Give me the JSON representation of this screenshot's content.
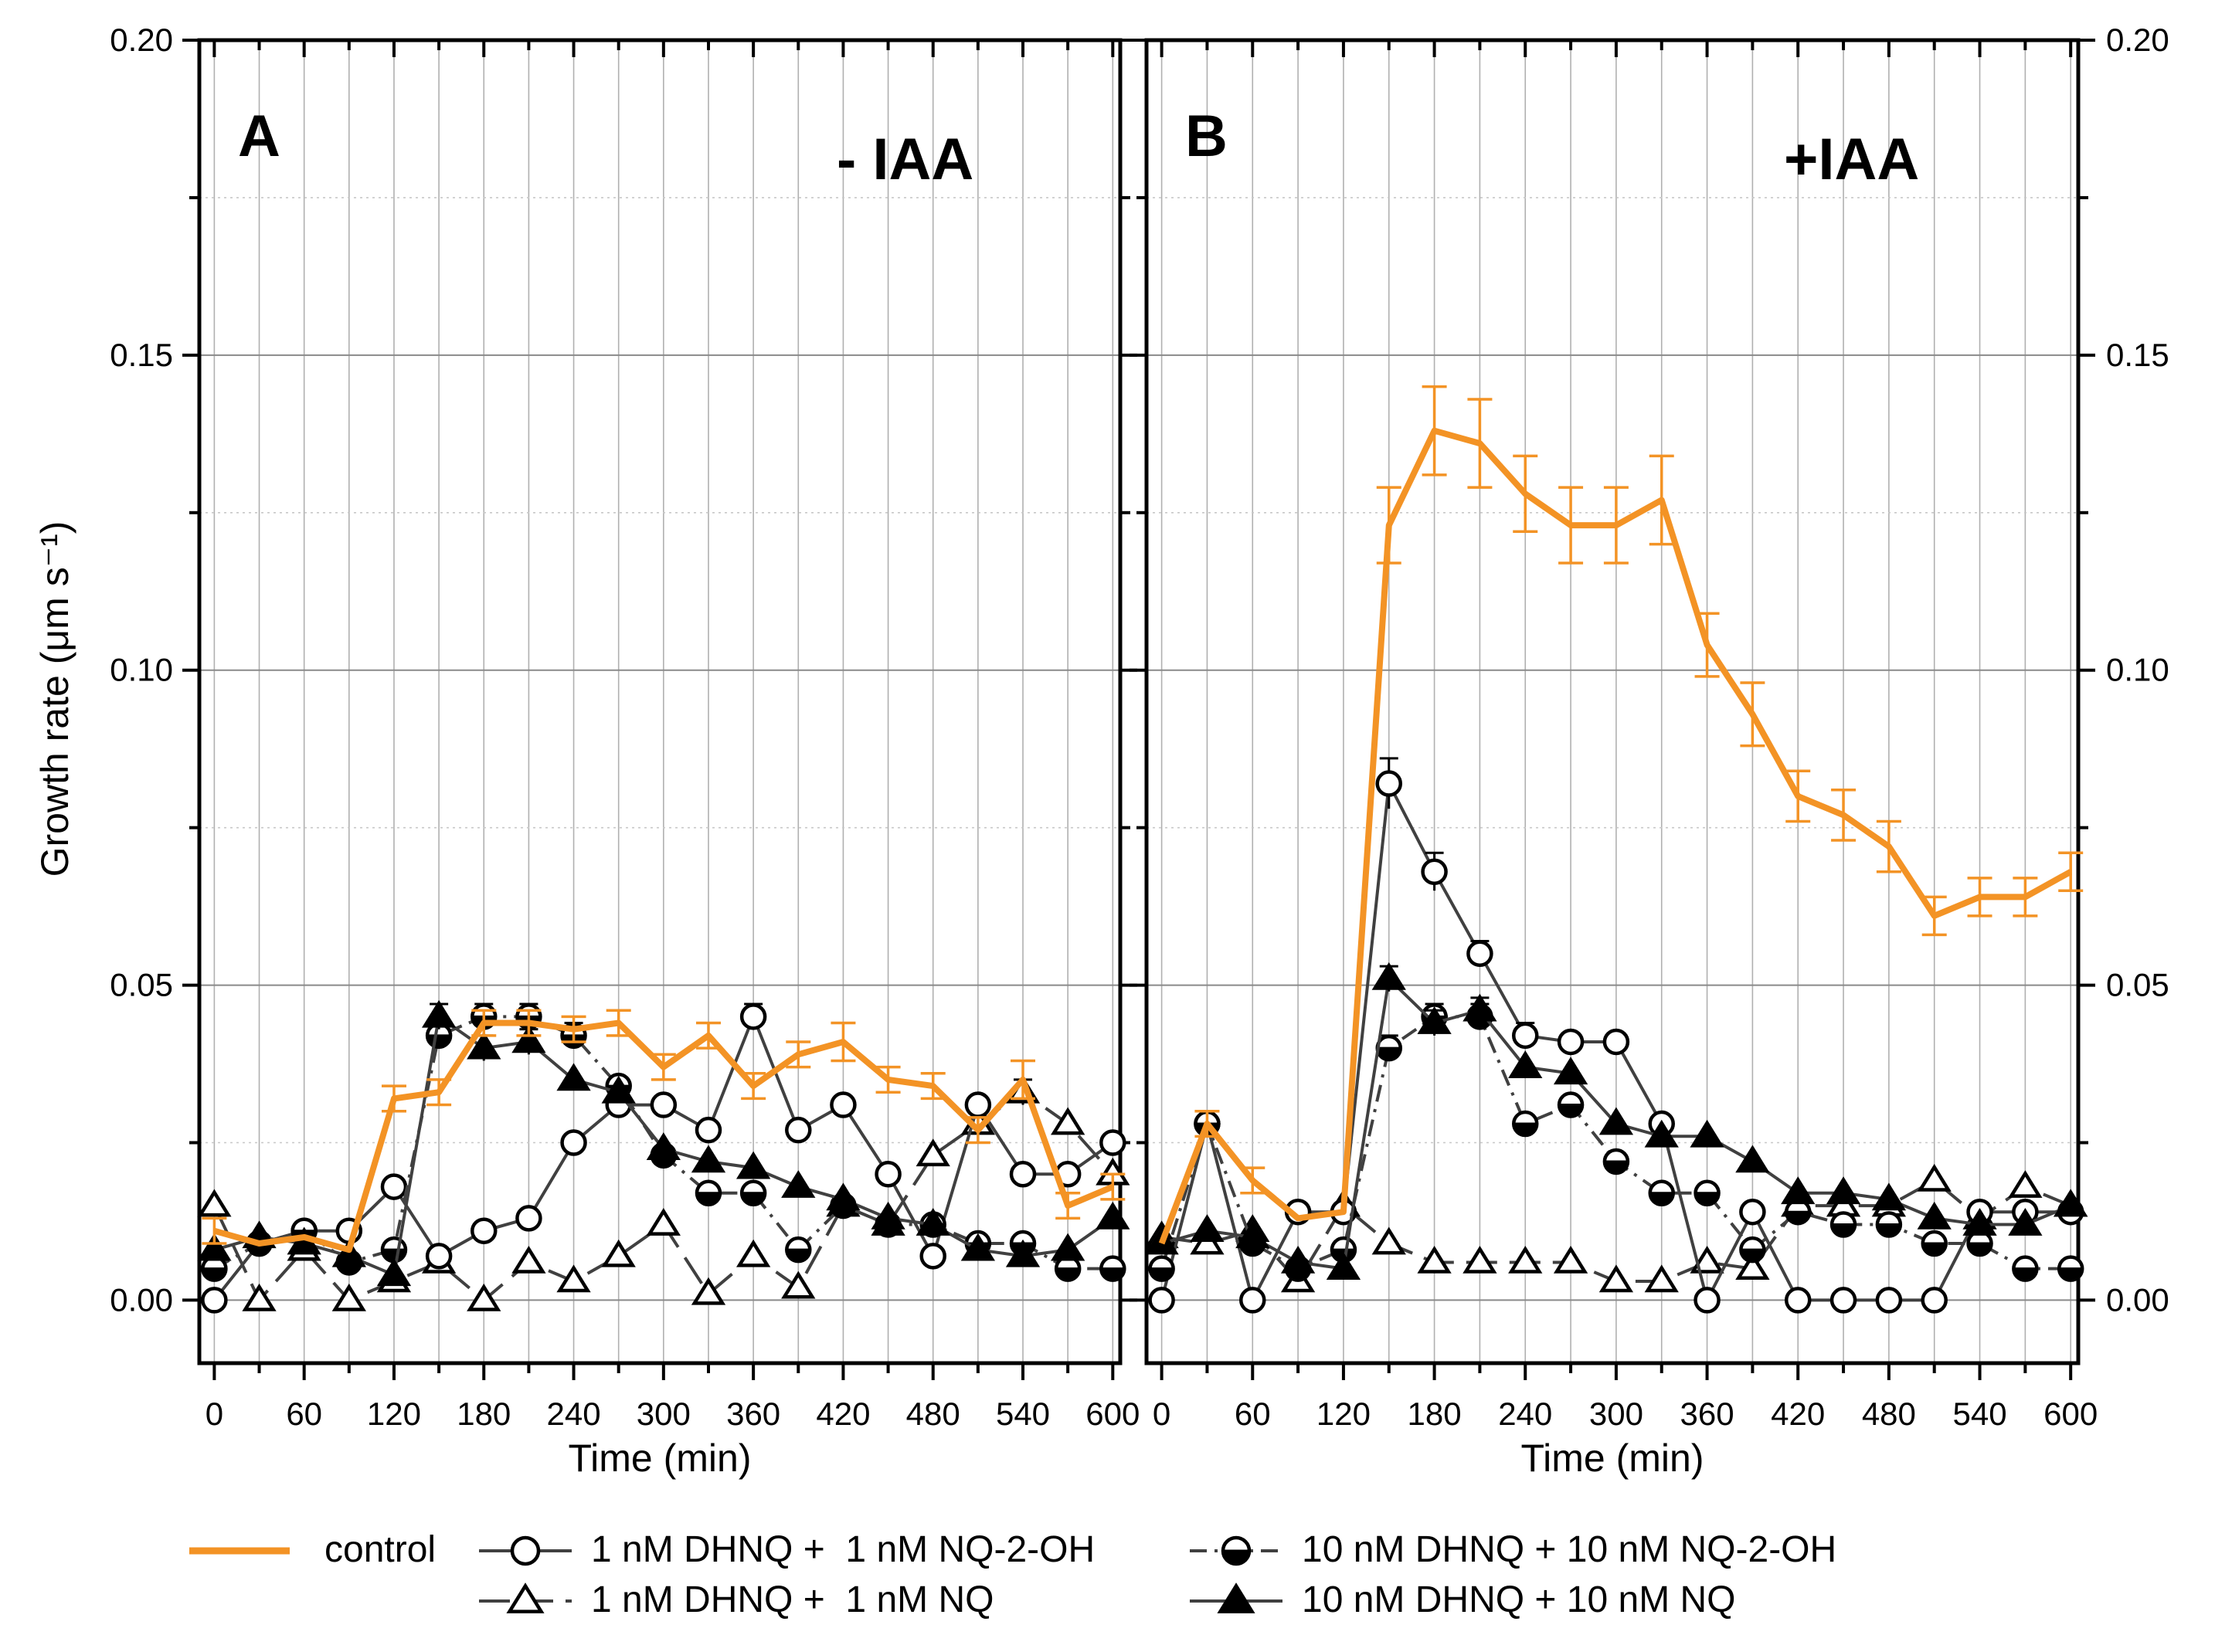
{
  "colors": {
    "control": "#f39325",
    "marker_series": "#404040",
    "grid": "#b0b0b0",
    "axis": "#000000"
  },
  "y_axis_label": "Growth rate (μm s⁻¹)",
  "legend": {
    "items": [
      {
        "label": "control",
        "style": "control"
      },
      {
        "label": "1 nM DHNQ +  1 nM NQ-2-OH",
        "style": "open-circle"
      },
      {
        "label": "10 nM DHNQ + 10 nM NQ-2-OH",
        "style": "half-circle"
      },
      {
        "label": "1 nM DHNQ +  1 nM NQ",
        "style": "open-triangle"
      },
      {
        "label": "10 nM DHNQ + 10 nM NQ",
        "style": "filled-triangle"
      }
    ]
  },
  "chart_data": [
    {
      "panel_label": "A",
      "condition_label": "- IAA",
      "type": "line",
      "xlabel": "Time (min)",
      "ylabel": "Growth rate (μm s⁻¹)",
      "xlim": [
        -10,
        605
      ],
      "ylim": [
        -0.01,
        0.2
      ],
      "xticks": [
        0,
        60,
        120,
        180,
        240,
        300,
        360,
        420,
        480,
        540,
        600
      ],
      "yticks": [
        0.0,
        0.05,
        0.1,
        0.15,
        0.2
      ],
      "ytick_labels": [
        "0.00",
        "0.05",
        "0.10",
        "0.15",
        "0.20"
      ],
      "grid": true,
      "x": [
        0,
        30,
        60,
        90,
        120,
        150,
        180,
        210,
        240,
        270,
        300,
        330,
        360,
        390,
        420,
        450,
        480,
        510,
        540,
        570,
        600
      ],
      "series": [
        {
          "name": "control",
          "style": "control",
          "values": [
            0.011,
            0.009,
            0.01,
            0.008,
            0.032,
            0.033,
            0.044,
            0.044,
            0.043,
            0.044,
            0.037,
            0.042,
            0.034,
            0.039,
            0.041,
            0.035,
            0.034,
            0.027,
            0.035,
            0.015,
            0.018
          ],
          "errors": [
            0.002,
            0.001,
            0.001,
            0.001,
            0.002,
            0.002,
            0.002,
            0.002,
            0.002,
            0.002,
            0.002,
            0.002,
            0.002,
            0.002,
            0.003,
            0.002,
            0.002,
            0.002,
            0.003,
            0.002,
            0.002
          ]
        },
        {
          "name": "1 nM DHNQ +  1 nM NQ-2-OH",
          "style": "open-circle",
          "values": [
            0.0,
            0.009,
            0.011,
            0.011,
            0.018,
            0.007,
            0.011,
            0.013,
            0.025,
            0.031,
            0.031,
            0.027,
            0.045,
            0.027,
            0.031,
            0.02,
            0.007,
            0.031,
            0.02,
            0.02,
            0.025
          ],
          "errors": [
            0.001,
            0.001,
            0.001,
            0.001,
            0.001,
            0.001,
            0.001,
            0.001,
            0.001,
            0.001,
            0.001,
            0.001,
            0.002,
            0.001,
            0.001,
            0.001,
            0.001,
            0.001,
            0.001,
            0.001,
            0.001
          ]
        },
        {
          "name": "10 nM DHNQ + 10 nM NQ-2-OH",
          "style": "half-circle",
          "values": [
            0.005,
            0.009,
            0.011,
            0.006,
            0.008,
            0.042,
            0.045,
            0.045,
            0.042,
            0.034,
            0.023,
            0.017,
            0.017,
            0.008,
            0.015,
            0.012,
            0.012,
            0.009,
            0.009,
            0.005,
            0.005
          ],
          "errors": [
            0.001,
            0.001,
            0.001,
            0.001,
            0.001,
            0.002,
            0.002,
            0.002,
            0.002,
            0.001,
            0.001,
            0.001,
            0.001,
            0.001,
            0.001,
            0.001,
            0.001,
            0.001,
            0.001,
            0.001,
            0.001
          ]
        },
        {
          "name": "1 nM DHNQ +  1 nM NQ",
          "style": "open-triangle",
          "values": [
            0.015,
            0.0,
            0.008,
            0.0,
            0.003,
            0.006,
            0.0,
            0.006,
            0.003,
            0.007,
            0.012,
            0.001,
            0.007,
            0.002,
            0.015,
            0.012,
            0.023,
            0.028,
            0.033,
            0.028,
            0.02
          ],
          "errors": [
            0.001,
            0.001,
            0.001,
            0.001,
            0.001,
            0.001,
            0.001,
            0.001,
            0.001,
            0.001,
            0.001,
            0.001,
            0.001,
            0.001,
            0.001,
            0.001,
            0.001,
            0.001,
            0.002,
            0.001,
            0.001
          ]
        },
        {
          "name": "10 nM DHNQ + 10 nM NQ",
          "style": "filled-triangle",
          "values": [
            0.008,
            0.01,
            0.009,
            0.007,
            0.004,
            0.045,
            0.04,
            0.041,
            0.035,
            0.033,
            0.024,
            0.022,
            0.021,
            0.018,
            0.016,
            0.013,
            0.012,
            0.008,
            0.007,
            0.008,
            0.013
          ],
          "errors": [
            0.001,
            0.001,
            0.001,
            0.001,
            0.001,
            0.002,
            0.002,
            0.002,
            0.001,
            0.001,
            0.001,
            0.001,
            0.001,
            0.001,
            0.001,
            0.001,
            0.001,
            0.001,
            0.001,
            0.001,
            0.001
          ]
        }
      ]
    },
    {
      "panel_label": "B",
      "condition_label": "+IAA",
      "type": "line",
      "xlabel": "Time (min)",
      "ylabel": "",
      "xlim": [
        -10,
        605
      ],
      "ylim": [
        -0.01,
        0.2
      ],
      "xticks": [
        0,
        60,
        120,
        180,
        240,
        300,
        360,
        420,
        480,
        540,
        600
      ],
      "yticks": [
        0.0,
        0.05,
        0.1,
        0.15,
        0.2
      ],
      "ytick_labels": [
        "0.00",
        "0.05",
        "0.10",
        "0.15",
        "0.20"
      ],
      "grid": true,
      "x": [
        0,
        30,
        60,
        90,
        120,
        150,
        180,
        210,
        240,
        270,
        300,
        330,
        360,
        390,
        420,
        450,
        480,
        510,
        540,
        570,
        600
      ],
      "series": [
        {
          "name": "control",
          "style": "control",
          "values": [
            0.009,
            0.028,
            0.019,
            0.013,
            0.014,
            0.123,
            0.138,
            0.136,
            0.128,
            0.123,
            0.123,
            0.127,
            0.104,
            0.093,
            0.08,
            0.077,
            0.072,
            0.061,
            0.064,
            0.064,
            0.068
          ],
          "errors": [
            0.001,
            0.002,
            0.002,
            0.001,
            0.001,
            0.006,
            0.007,
            0.007,
            0.006,
            0.006,
            0.006,
            0.007,
            0.005,
            0.005,
            0.004,
            0.004,
            0.004,
            0.003,
            0.003,
            0.003,
            0.003
          ]
        },
        {
          "name": "1 nM DHNQ +  1 nM NQ-2-OH",
          "style": "open-circle",
          "values": [
            0.0,
            0.028,
            0.0,
            0.014,
            0.014,
            0.082,
            0.068,
            0.055,
            0.042,
            0.041,
            0.041,
            0.028,
            0.0,
            0.014,
            0.0,
            0.0,
            0.0,
            0.0,
            0.014,
            0.014,
            0.014
          ],
          "errors": [
            0.001,
            0.001,
            0.001,
            0.001,
            0.001,
            0.004,
            0.003,
            0.002,
            0.002,
            0.001,
            0.001,
            0.001,
            0.001,
            0.001,
            0.001,
            0.001,
            0.001,
            0.001,
            0.001,
            0.001,
            0.001
          ]
        },
        {
          "name": "10 nM DHNQ + 10 nM NQ-2-OH",
          "style": "half-circle",
          "values": [
            0.005,
            0.028,
            0.009,
            0.005,
            0.008,
            0.04,
            0.045,
            0.045,
            0.028,
            0.031,
            0.022,
            0.017,
            0.017,
            0.008,
            0.014,
            0.012,
            0.012,
            0.009,
            0.009,
            0.005,
            0.005
          ],
          "errors": [
            0.001,
            0.001,
            0.001,
            0.001,
            0.001,
            0.002,
            0.002,
            0.002,
            0.001,
            0.001,
            0.001,
            0.001,
            0.001,
            0.001,
            0.001,
            0.001,
            0.001,
            0.001,
            0.001,
            0.001,
            0.001
          ]
        },
        {
          "name": "1 nM DHNQ +  1 nM NQ",
          "style": "open-triangle",
          "values": [
            0.01,
            0.009,
            0.011,
            0.003,
            0.015,
            0.009,
            0.006,
            0.006,
            0.006,
            0.006,
            0.003,
            0.003,
            0.006,
            0.005,
            0.015,
            0.015,
            0.015,
            0.019,
            0.013,
            0.018,
            0.015
          ],
          "errors": [
            0.001,
            0.001,
            0.001,
            0.001,
            0.001,
            0.001,
            0.001,
            0.001,
            0.001,
            0.001,
            0.001,
            0.001,
            0.001,
            0.001,
            0.001,
            0.001,
            0.001,
            0.001,
            0.001,
            0.001,
            0.001
          ]
        },
        {
          "name": "10 nM DHNQ + 10 nM NQ",
          "style": "filled-triangle",
          "values": [
            0.009,
            0.011,
            0.01,
            0.006,
            0.005,
            0.051,
            0.044,
            0.046,
            0.037,
            0.036,
            0.028,
            0.026,
            0.026,
            0.022,
            0.017,
            0.017,
            0.016,
            0.013,
            0.012,
            0.012,
            0.015
          ],
          "errors": [
            0.001,
            0.001,
            0.001,
            0.001,
            0.001,
            0.002,
            0.002,
            0.002,
            0.001,
            0.001,
            0.001,
            0.001,
            0.001,
            0.001,
            0.001,
            0.001,
            0.001,
            0.001,
            0.001,
            0.001,
            0.001
          ]
        }
      ]
    }
  ]
}
